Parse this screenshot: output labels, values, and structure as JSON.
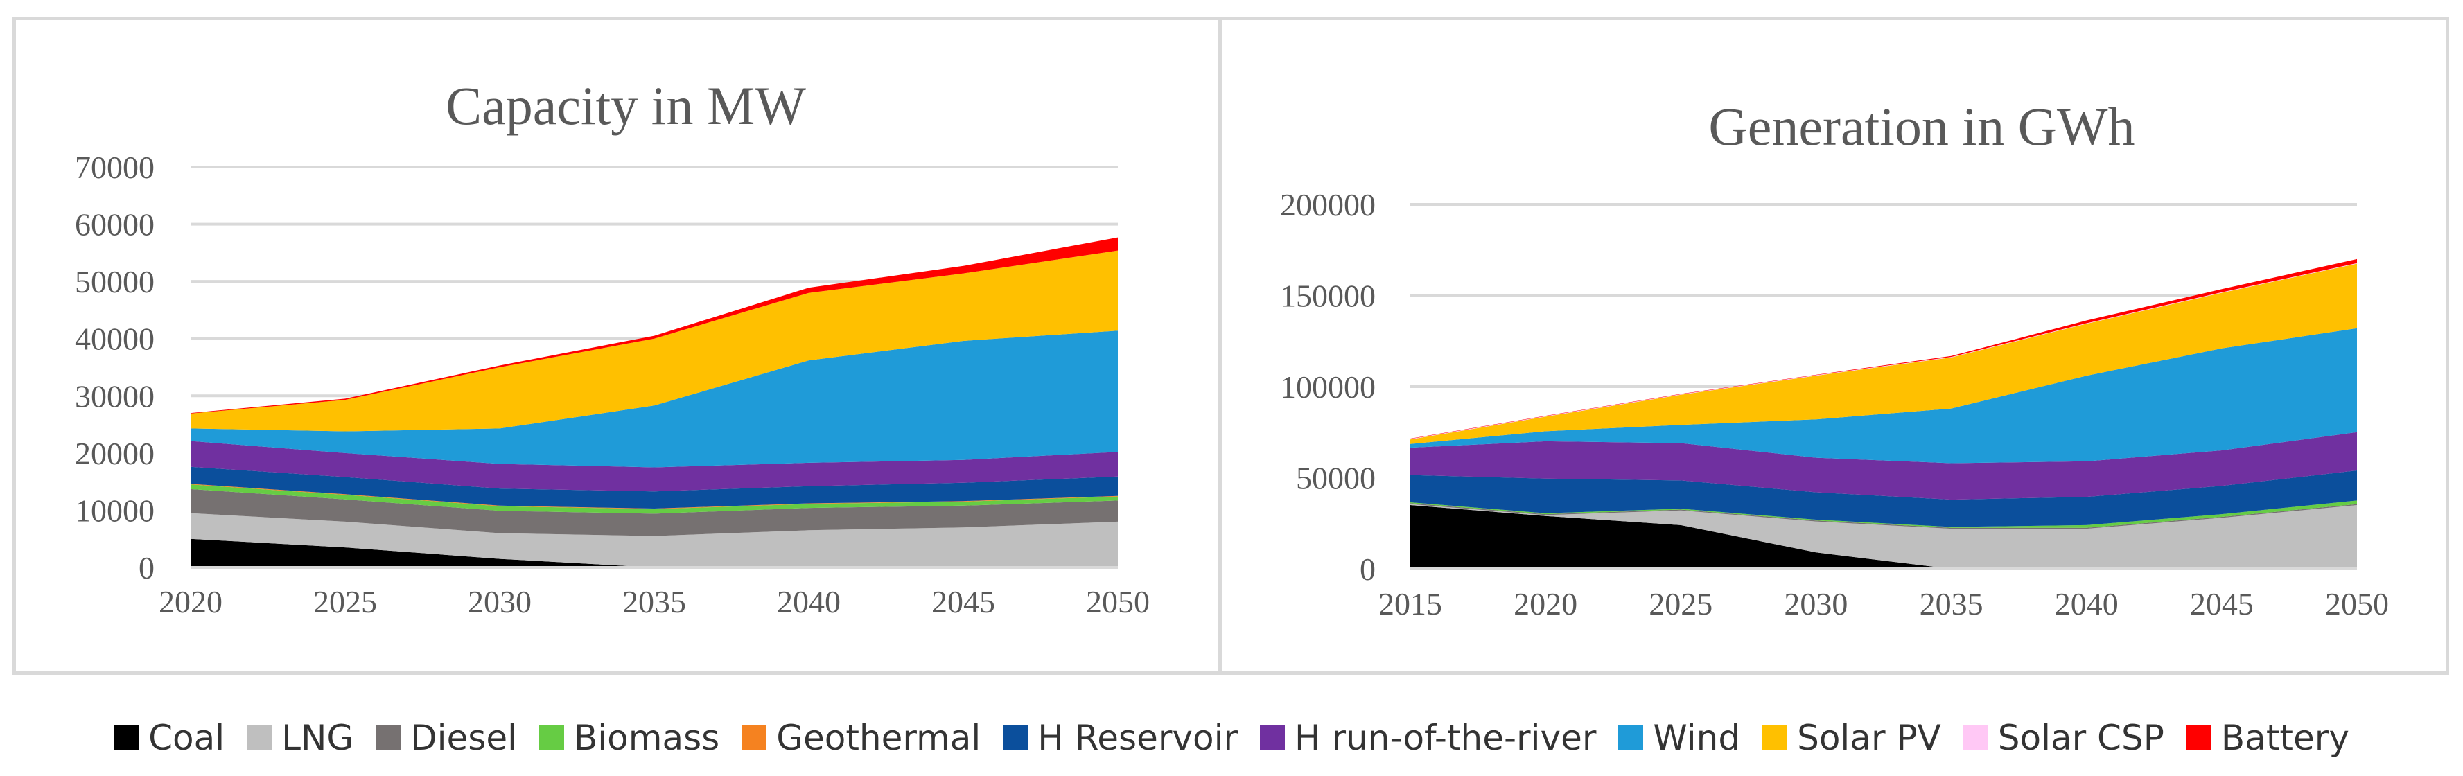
{
  "chart_data": [
    {
      "type": "area",
      "stacked": true,
      "title": "Capacity in MW",
      "x": [
        2020,
        2025,
        2030,
        2035,
        2040,
        2045,
        2050
      ],
      "ylim": [
        0,
        70000
      ],
      "yticks": [
        0,
        10000,
        20000,
        30000,
        40000,
        50000,
        60000,
        70000
      ],
      "grid": true,
      "series": [
        {
          "name": "Coal",
          "values": [
            5000,
            3500,
            1500,
            0,
            0,
            0,
            0
          ]
        },
        {
          "name": "LNG",
          "values": [
            4500,
            4500,
            4500,
            5500,
            6500,
            7000,
            8000
          ]
        },
        {
          "name": "Diesel",
          "values": [
            4200,
            3900,
            3900,
            3900,
            3900,
            3800,
            3700
          ]
        },
        {
          "name": "Biomass",
          "values": [
            800,
            800,
            800,
            800,
            700,
            700,
            700
          ]
        },
        {
          "name": "Geothermal",
          "values": [
            100,
            100,
            100,
            100,
            100,
            100,
            100
          ]
        },
        {
          "name": "H Reservoir",
          "values": [
            3000,
            3000,
            3000,
            3000,
            3000,
            3200,
            3400
          ]
        },
        {
          "name": "H run-of-the-river",
          "values": [
            4500,
            4200,
            4300,
            4200,
            4100,
            4000,
            4300
          ]
        },
        {
          "name": "Wind",
          "values": [
            2200,
            3800,
            6200,
            10800,
            17900,
            20800,
            21200
          ]
        },
        {
          "name": "Solar PV",
          "values": [
            2600,
            5500,
            10700,
            11700,
            11800,
            11800,
            14000
          ]
        },
        {
          "name": "Solar CSP",
          "values": [
            0,
            0,
            0,
            0,
            0,
            0,
            0
          ]
        },
        {
          "name": "Battery",
          "values": [
            100,
            200,
            300,
            500,
            900,
            1300,
            2300
          ]
        }
      ]
    },
    {
      "type": "area",
      "stacked": true,
      "title": "Generation in GWh",
      "x": [
        2015,
        2020,
        2025,
        2030,
        2035,
        2040,
        2045,
        2050
      ],
      "ylim": [
        0,
        200000
      ],
      "yticks": [
        0,
        50000,
        100000,
        150000,
        200000
      ],
      "grid": true,
      "series": [
        {
          "name": "Coal",
          "values": [
            35000,
            29000,
            24000,
            9000,
            0,
            0,
            0,
            0
          ]
        },
        {
          "name": "LNG",
          "values": [
            500,
            500,
            8000,
            17000,
            22000,
            22000,
            28000,
            35000
          ]
        },
        {
          "name": "Diesel",
          "values": [
            500,
            500,
            500,
            500,
            500,
            500,
            500,
            500
          ]
        },
        {
          "name": "Biomass",
          "values": [
            500,
            500,
            500,
            500,
            500,
            1500,
            1500,
            2000
          ]
        },
        {
          "name": "Geothermal",
          "values": [
            0,
            0,
            0,
            0,
            0,
            0,
            0,
            0
          ]
        },
        {
          "name": "H Reservoir",
          "values": [
            15000,
            19000,
            15500,
            15000,
            15000,
            15500,
            15500,
            16500
          ]
        },
        {
          "name": "H run-of-the-river",
          "values": [
            15000,
            20500,
            20500,
            19000,
            20000,
            19500,
            19500,
            21000
          ]
        },
        {
          "name": "Wind",
          "values": [
            2000,
            5500,
            10000,
            21000,
            30000,
            47000,
            56000,
            57000
          ]
        },
        {
          "name": "Solar PV",
          "values": [
            2500,
            8000,
            16500,
            24000,
            28000,
            28500,
            30500,
            35500
          ]
        },
        {
          "name": "Solar CSP",
          "values": [
            300,
            300,
            300,
            300,
            300,
            300,
            300,
            300
          ]
        },
        {
          "name": "Battery",
          "values": [
            200,
            200,
            200,
            200,
            500,
            1500,
            1700,
            2200
          ]
        }
      ]
    }
  ],
  "legend": [
    {
      "name": "Coal",
      "color": "#000000"
    },
    {
      "name": "LNG",
      "color": "#bfbfbf"
    },
    {
      "name": "Diesel",
      "color": "#767171"
    },
    {
      "name": "Biomass",
      "color": "#66cc44"
    },
    {
      "name": "Geothermal",
      "color": "#f58220"
    },
    {
      "name": "H Reservoir",
      "color": "#0b4f9c"
    },
    {
      "name": "H run-of-the-river",
      "color": "#7030a0"
    },
    {
      "name": "Wind",
      "color": "#1f9bd8"
    },
    {
      "name": "Solar PV",
      "color": "#ffc000"
    },
    {
      "name": "Solar CSP",
      "color": "#ffc8f5"
    },
    {
      "name": "Battery",
      "color": "#ff0000"
    }
  ]
}
